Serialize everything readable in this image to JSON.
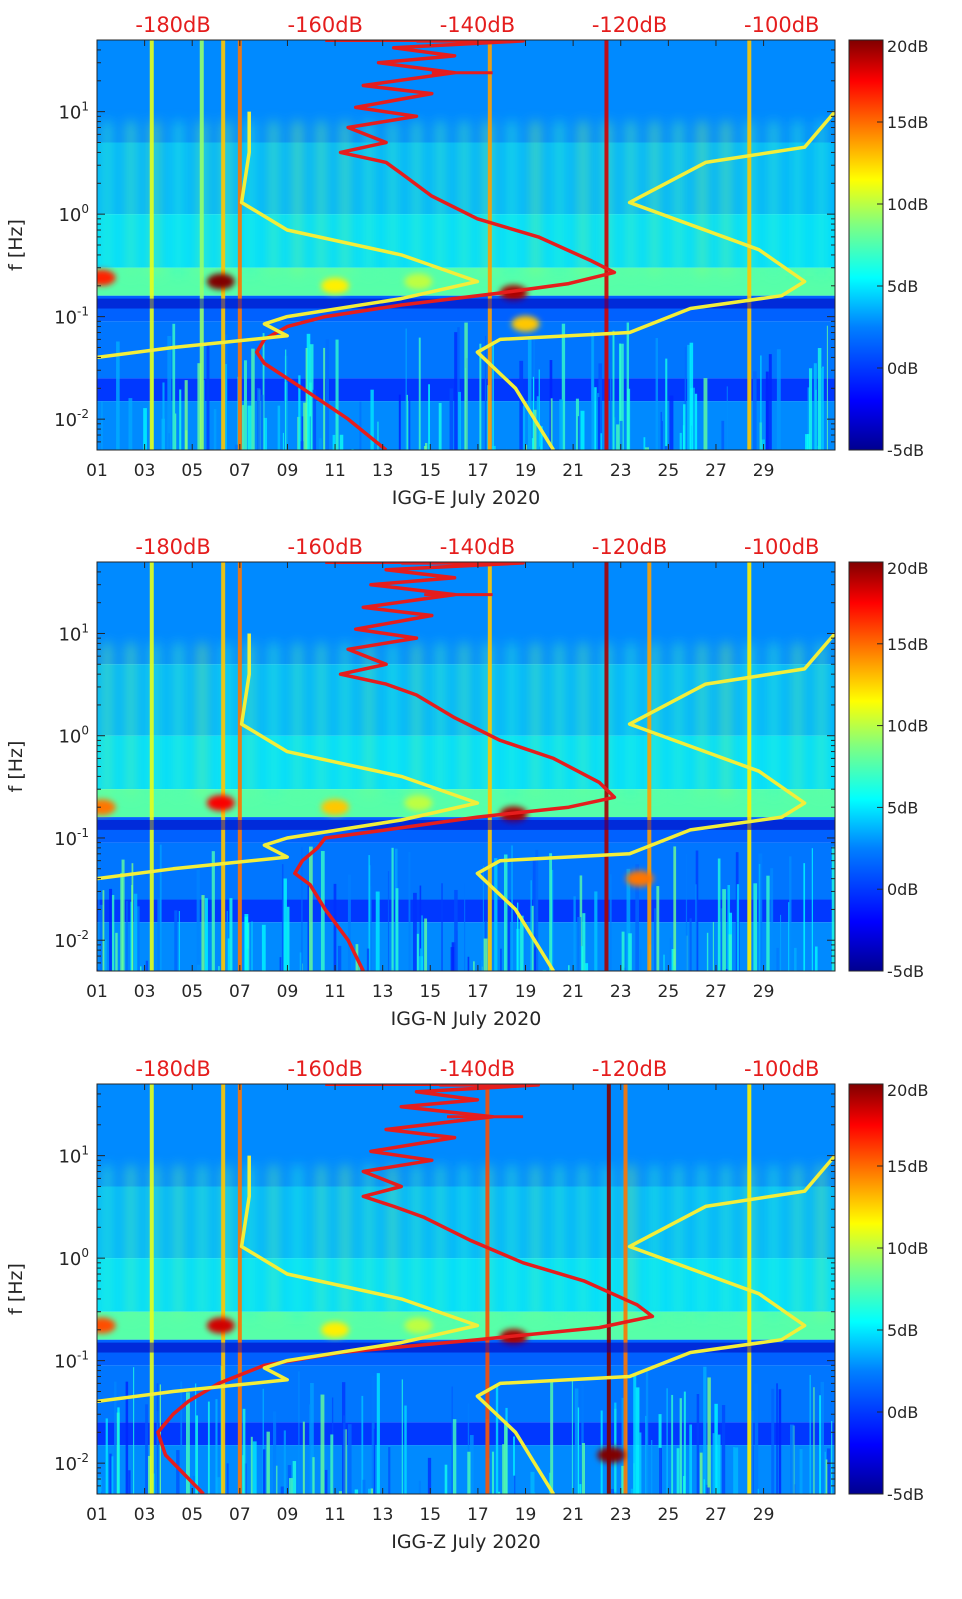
{
  "colors": {
    "red_curve": "#e51d1d",
    "yellow_curve": "#f2ee3a",
    "axis_top_labels": "#e51d1d",
    "axis_text": "#262626",
    "colormap": [
      "#00008f",
      "#0000ff",
      "#0080ff",
      "#00ffff",
      "#80ff80",
      "#ffff00",
      "#ff8000",
      "#ff0000",
      "#800000"
    ],
    "spectrogram_base": "#1e3fd6"
  },
  "chart_data": [
    {
      "type": "heatmap",
      "title": "",
      "xlabel": "IGG-E July 2020",
      "ylabel": "f [Hz]",
      "x_ticks": [
        "01",
        "03",
        "05",
        "07",
        "09",
        "11",
        "13",
        "15",
        "17",
        "19",
        "21",
        "23",
        "25",
        "27",
        "29"
      ],
      "x_range_days": [
        1,
        32
      ],
      "y_scale": "log",
      "ylim": [
        0.005,
        50
      ],
      "y_ticks": [
        "10-2",
        "10-1",
        "100",
        "101"
      ],
      "top_axis_labels": [
        "-180dB",
        "-160dB",
        "-140dB",
        "-120dB",
        "-100dB"
      ],
      "top_axis_range_db": [
        -190,
        -93
      ],
      "colorbar_ticks": [
        "20dB",
        "15dB",
        "10dB",
        "5dB",
        "0dB",
        "-5dB"
      ],
      "colorbar_range_db": [
        -5,
        20
      ],
      "hotspots": [
        {
          "day": 6.2,
          "freq": 0.22,
          "db": 20
        },
        {
          "day": 1.2,
          "freq": 0.24,
          "db": 16
        },
        {
          "day": 18.5,
          "freq": 0.17,
          "db": 19
        },
        {
          "day": 19.0,
          "freq": 0.085,
          "db": 12
        },
        {
          "day": 11,
          "freq": 0.2,
          "db": 11
        },
        {
          "day": 14.5,
          "freq": 0.22,
          "db": 9
        }
      ],
      "streaks": [
        {
          "day": 3.3,
          "db": 10
        },
        {
          "day": 5.4,
          "db": 8
        },
        {
          "day": 6.3,
          "db": 12
        },
        {
          "day": 7.0,
          "db": 14
        },
        {
          "day": 17.5,
          "db": 13
        },
        {
          "day": 22.4,
          "db": 18
        },
        {
          "day": 28.4,
          "db": 12
        }
      ],
      "series": [
        {
          "name": "red noise-model curve",
          "color": "red",
          "points": [
            [
              -148,
              49
            ],
            [
              -134,
              49
            ],
            [
              -151,
              42
            ],
            [
              -143,
              35
            ],
            [
              -153,
              30
            ],
            [
              -143,
              24
            ],
            [
              -155,
              18
            ],
            [
              -146,
              15
            ],
            [
              -156,
              11
            ],
            [
              -148,
              9
            ],
            [
              -157,
              7
            ],
            [
              -152,
              5
            ],
            [
              -158,
              4
            ],
            [
              -152,
              3.2
            ],
            [
              -150,
              2.5
            ],
            [
              -146,
              1.5
            ],
            [
              -140,
              0.9
            ],
            [
              -132,
              0.6
            ],
            [
              -125,
              0.35
            ],
            [
              -122,
              0.27
            ],
            [
              -128,
              0.21
            ],
            [
              -137,
              0.17
            ],
            [
              -150,
              0.13
            ],
            [
              -160,
              0.1
            ],
            [
              -165,
              0.08
            ],
            [
              -168,
              0.06
            ],
            [
              -169,
              0.045
            ],
            [
              -168,
              0.035
            ],
            [
              -163,
              0.02
            ],
            [
              -157,
              0.01
            ],
            [
              -152,
              0.005
            ]
          ],
          "extra": [
            [
              -146,
              24
            ],
            [
              -138,
              24
            ]
          ]
        },
        {
          "name": "yellow low-noise model",
          "color": "yellow",
          "points": [
            [
              -170,
              10
            ],
            [
              -170,
              4
            ],
            [
              -171,
              1.3
            ],
            [
              -165,
              0.7
            ],
            [
              -150,
              0.4
            ],
            [
              -140,
              0.22
            ],
            [
              -150,
              0.15
            ],
            [
              -165,
              0.1
            ],
            [
              -168,
              0.085
            ],
            [
              -165,
              0.065
            ],
            [
              -180,
              0.05
            ],
            [
              -190,
              0.04
            ],
            [
              -194,
              0.025
            ],
            [
              -196,
              0.015
            ],
            [
              -195,
              0.005
            ]
          ]
        },
        {
          "name": "yellow high-noise model",
          "color": "yellow",
          "points": [
            [
              -93,
              10
            ],
            [
              -97,
              4.5
            ],
            [
              -110,
              3.2
            ],
            [
              -120,
              1.3
            ],
            [
              -103,
              0.45
            ],
            [
              -97,
              0.22
            ],
            [
              -100,
              0.16
            ],
            [
              -112,
              0.12
            ],
            [
              -120,
              0.07
            ],
            [
              -137,
              0.06
            ],
            [
              -140,
              0.045
            ],
            [
              -135,
              0.02
            ],
            [
              -130,
              0.005
            ]
          ]
        }
      ]
    },
    {
      "type": "heatmap",
      "title": "",
      "xlabel": "IGG-N July 2020",
      "ylabel": "f [Hz]",
      "x_ticks": [
        "01",
        "03",
        "05",
        "07",
        "09",
        "11",
        "13",
        "15",
        "17",
        "19",
        "21",
        "23",
        "25",
        "27",
        "29"
      ],
      "x_range_days": [
        1,
        32
      ],
      "y_scale": "log",
      "ylim": [
        0.005,
        50
      ],
      "y_ticks": [
        "10-2",
        "10-1",
        "100",
        "101"
      ],
      "top_axis_labels": [
        "-180dB",
        "-160dB",
        "-140dB",
        "-120dB",
        "-100dB"
      ],
      "top_axis_range_db": [
        -190,
        -93
      ],
      "colorbar_ticks": [
        "20dB",
        "15dB",
        "10dB",
        "5dB",
        "0dB",
        "-5dB"
      ],
      "colorbar_range_db": [
        -5,
        20
      ],
      "hotspots": [
        {
          "day": 6.2,
          "freq": 0.22,
          "db": 17
        },
        {
          "day": 1.2,
          "freq": 0.2,
          "db": 14
        },
        {
          "day": 18.5,
          "freq": 0.17,
          "db": 19
        },
        {
          "day": 11,
          "freq": 0.2,
          "db": 12
        },
        {
          "day": 23.8,
          "freq": 0.04,
          "db": 14
        },
        {
          "day": 14.5,
          "freq": 0.22,
          "db": 9
        }
      ],
      "streaks": [
        {
          "day": 3.3,
          "db": 10
        },
        {
          "day": 6.3,
          "db": 12
        },
        {
          "day": 7.0,
          "db": 14
        },
        {
          "day": 17.5,
          "db": 12
        },
        {
          "day": 22.4,
          "db": 19
        },
        {
          "day": 24.2,
          "db": 13
        },
        {
          "day": 28.4,
          "db": 11
        }
      ],
      "series": [
        {
          "name": "red noise-model curve",
          "color": "red",
          "points": [
            [
              -150,
              49
            ],
            [
              -134,
              49
            ],
            [
              -152,
              42
            ],
            [
              -143,
              35
            ],
            [
              -154,
              30
            ],
            [
              -143,
              24
            ],
            [
              -155,
              18
            ],
            [
              -146,
              15
            ],
            [
              -156,
              11
            ],
            [
              -148,
              9
            ],
            [
              -157,
              7
            ],
            [
              -152,
              5
            ],
            [
              -158,
              4
            ],
            [
              -152,
              3.2
            ],
            [
              -148,
              2.5
            ],
            [
              -143,
              1.5
            ],
            [
              -137,
              0.9
            ],
            [
              -130,
              0.6
            ],
            [
              -124,
              0.35
            ],
            [
              -122,
              0.25
            ],
            [
              -128,
              0.2
            ],
            [
              -140,
              0.16
            ],
            [
              -152,
              0.12
            ],
            [
              -160,
              0.1
            ],
            [
              -161,
              0.08
            ],
            [
              -163,
              0.06
            ],
            [
              -164,
              0.045
            ],
            [
              -162,
              0.035
            ],
            [
              -160,
              0.02
            ],
            [
              -157,
              0.01
            ],
            [
              -155,
              0.005
            ]
          ],
          "extra": [
            [
              -147,
              24
            ],
            [
              -138,
              24
            ]
          ]
        },
        {
          "name": "yellow low-noise model",
          "color": "yellow",
          "points": [
            [
              -170,
              10
            ],
            [
              -170,
              4
            ],
            [
              -171,
              1.3
            ],
            [
              -165,
              0.7
            ],
            [
              -150,
              0.4
            ],
            [
              -140,
              0.22
            ],
            [
              -150,
              0.15
            ],
            [
              -165,
              0.1
            ],
            [
              -168,
              0.085
            ],
            [
              -165,
              0.065
            ],
            [
              -180,
              0.05
            ],
            [
              -190,
              0.04
            ],
            [
              -194,
              0.025
            ],
            [
              -196,
              0.015
            ],
            [
              -195,
              0.005
            ]
          ]
        },
        {
          "name": "yellow high-noise model",
          "color": "yellow",
          "points": [
            [
              -93,
              10
            ],
            [
              -97,
              4.5
            ],
            [
              -110,
              3.2
            ],
            [
              -120,
              1.3
            ],
            [
              -103,
              0.45
            ],
            [
              -97,
              0.22
            ],
            [
              -100,
              0.16
            ],
            [
              -112,
              0.12
            ],
            [
              -120,
              0.07
            ],
            [
              -137,
              0.06
            ],
            [
              -140,
              0.045
            ],
            [
              -135,
              0.02
            ],
            [
              -130,
              0.005
            ]
          ]
        }
      ]
    },
    {
      "type": "heatmap",
      "title": "",
      "xlabel": "IGG-Z July 2020",
      "ylabel": "f [Hz]",
      "x_ticks": [
        "01",
        "03",
        "05",
        "07",
        "09",
        "11",
        "13",
        "15",
        "17",
        "19",
        "21",
        "23",
        "25",
        "27",
        "29"
      ],
      "x_range_days": [
        1,
        32
      ],
      "y_scale": "log",
      "ylim": [
        0.005,
        50
      ],
      "y_ticks": [
        "10-2",
        "10-1",
        "100",
        "101"
      ],
      "top_axis_labels": [
        "-180dB",
        "-160dB",
        "-140dB",
        "-120dB",
        "-100dB"
      ],
      "top_axis_range_db": [
        -190,
        -93
      ],
      "colorbar_ticks": [
        "20dB",
        "15dB",
        "10dB",
        "5dB",
        "0dB",
        "-5dB"
      ],
      "colorbar_range_db": [
        -5,
        20
      ],
      "hotspots": [
        {
          "day": 6.2,
          "freq": 0.22,
          "db": 18
        },
        {
          "day": 1.2,
          "freq": 0.22,
          "db": 15
        },
        {
          "day": 18.5,
          "freq": 0.17,
          "db": 19
        },
        {
          "day": 11,
          "freq": 0.2,
          "db": 11
        },
        {
          "day": 22.6,
          "freq": 0.012,
          "db": 20
        },
        {
          "day": 14.5,
          "freq": 0.22,
          "db": 9
        }
      ],
      "streaks": [
        {
          "day": 3.3,
          "db": 10
        },
        {
          "day": 6.3,
          "db": 12
        },
        {
          "day": 7.0,
          "db": 14
        },
        {
          "day": 17.4,
          "db": 15
        },
        {
          "day": 22.5,
          "db": 20
        },
        {
          "day": 23.2,
          "db": 14
        },
        {
          "day": 28.4,
          "db": 11
        }
      ],
      "series": [
        {
          "name": "red noise-model curve",
          "color": "red",
          "points": [
            [
              -145,
              49
            ],
            [
              -132,
              49
            ],
            [
              -148,
              42
            ],
            [
              -140,
              35
            ],
            [
              -150,
              30
            ],
            [
              -138,
              24
            ],
            [
              -152,
              18
            ],
            [
              -143,
              15
            ],
            [
              -154,
              11
            ],
            [
              -146,
              9
            ],
            [
              -155,
              7
            ],
            [
              -150,
              5
            ],
            [
              -155,
              4
            ],
            [
              -151,
              3.2
            ],
            [
              -147,
              2.5
            ],
            [
              -141,
              1.5
            ],
            [
              -134,
              0.9
            ],
            [
              -126,
              0.6
            ],
            [
              -119,
              0.35
            ],
            [
              -117,
              0.27
            ],
            [
              -124,
              0.21
            ],
            [
              -140,
              0.16
            ],
            [
              -158,
              0.12
            ],
            [
              -168,
              0.09
            ],
            [
              -174,
              0.06
            ],
            [
              -178,
              0.04
            ],
            [
              -180,
              0.03
            ],
            [
              -182,
              0.02
            ],
            [
              -181,
              0.012
            ],
            [
              -176,
              0.005
            ]
          ],
          "extra": [
            [
              -144,
              24
            ],
            [
              -134,
              24
            ]
          ]
        },
        {
          "name": "yellow low-noise model",
          "color": "yellow",
          "points": [
            [
              -170,
              10
            ],
            [
              -170,
              4
            ],
            [
              -171,
              1.3
            ],
            [
              -165,
              0.7
            ],
            [
              -150,
              0.4
            ],
            [
              -140,
              0.22
            ],
            [
              -150,
              0.15
            ],
            [
              -165,
              0.1
            ],
            [
              -168,
              0.085
            ],
            [
              -165,
              0.065
            ],
            [
              -180,
              0.05
            ],
            [
              -190,
              0.04
            ],
            [
              -194,
              0.025
            ],
            [
              -196,
              0.015
            ],
            [
              -195,
              0.005
            ]
          ]
        },
        {
          "name": "yellow high-noise model",
          "color": "yellow",
          "points": [
            [
              -93,
              10
            ],
            [
              -97,
              4.5
            ],
            [
              -110,
              3.2
            ],
            [
              -120,
              1.3
            ],
            [
              -103,
              0.45
            ],
            [
              -97,
              0.22
            ],
            [
              -100,
              0.16
            ],
            [
              -112,
              0.12
            ],
            [
              -120,
              0.07
            ],
            [
              -137,
              0.06
            ],
            [
              -140,
              0.045
            ],
            [
              -135,
              0.02
            ],
            [
              -130,
              0.005
            ]
          ]
        }
      ]
    }
  ]
}
